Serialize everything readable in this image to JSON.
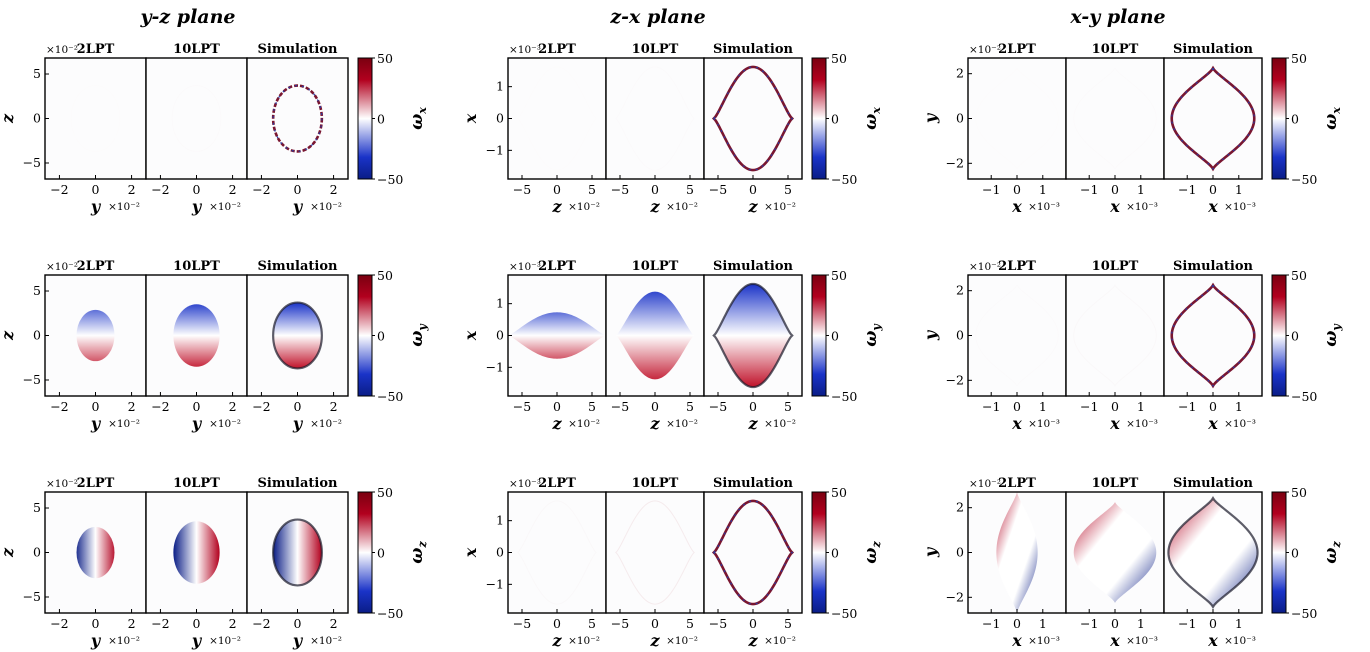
{
  "colors": {
    "positive": "#b2001e",
    "negative": "#0a1d86",
    "neutral": "#ffffff",
    "axes": "#000000"
  },
  "chart_data": {
    "type": "heatmap",
    "columns": [
      {
        "key": "yz",
        "title": "y-z plane",
        "xlabel": "y",
        "ylabel": "z",
        "x_multiplier": "×10⁻²",
        "y_multiplier": "×10⁻²",
        "x_ticks": [
          -2,
          0,
          2
        ],
        "y_ticks": [
          -5,
          0,
          5
        ],
        "xlim": [
          -2.8,
          2.8
        ],
        "ylim": [
          -6.8,
          6.8
        ],
        "shape": "ellipse",
        "rx": 1.35,
        "ry": 3.7
      },
      {
        "key": "zx",
        "title": "z-x plane",
        "xlabel": "z",
        "ylabel": "x",
        "x_multiplier": "×10⁻²",
        "y_multiplier": "×10⁻³",
        "x_ticks": [
          -5,
          0,
          5
        ],
        "y_ticks": [
          -1,
          0,
          1
        ],
        "xlim": [
          -7,
          7
        ],
        "ylim": [
          -1.9,
          1.9
        ],
        "shape": "lens_horizontal",
        "rx": 5.6,
        "ry": 1.62
      },
      {
        "key": "xy",
        "title": "x-y plane",
        "xlabel": "x",
        "ylabel": "y",
        "x_multiplier": "×10⁻³",
        "y_multiplier": "×10⁻²",
        "x_ticks": [
          -1,
          0,
          1
        ],
        "y_ticks": [
          -2,
          0,
          2
        ],
        "xlim": [
          -1.9,
          1.9
        ],
        "ylim": [
          -2.7,
          2.7
        ],
        "shape": "lens_vertical",
        "rx": 1.6,
        "ry": 2.25
      }
    ],
    "subplot_titles": [
      "2LPT",
      "10LPT",
      "Simulation"
    ],
    "rows": [
      {
        "component": "ω",
        "subscript": "x"
      },
      {
        "component": "ω",
        "subscript": "y"
      },
      {
        "component": "ω",
        "subscript": "z"
      }
    ],
    "colorbar": {
      "range": [
        -50,
        50
      ],
      "ticks": [
        50,
        0,
        -50
      ],
      "colormap": "seismic"
    },
    "intensity": [
      [
        [
          0.02,
          0.03,
          1.0
        ],
        [
          0.02,
          0.04,
          1.0
        ],
        [
          0.02,
          0.03,
          1.0
        ]
      ],
      [
        [
          0.55,
          0.75,
          1.0
        ],
        [
          0.55,
          0.75,
          1.0
        ],
        [
          0.03,
          0.08,
          1.0
        ]
      ],
      [
        [
          0.75,
          0.85,
          1.0
        ],
        [
          0.08,
          0.3,
          1.0
        ],
        [
          0.8,
          0.9,
          1.0
        ]
      ]
    ]
  }
}
